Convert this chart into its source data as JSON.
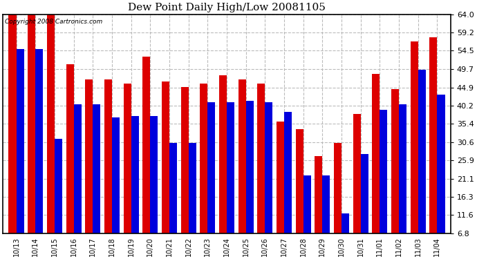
{
  "title": "Dew Point Daily High/Low 20081105",
  "copyright": "Copyright 2008 Cartronics.com",
  "dates": [
    "10/13",
    "10/14",
    "10/15",
    "10/16",
    "10/17",
    "10/18",
    "10/19",
    "10/20",
    "10/21",
    "10/22",
    "10/23",
    "10/24",
    "10/25",
    "10/26",
    "10/27",
    "10/28",
    "10/29",
    "10/30",
    "10/31",
    "11/01",
    "11/02",
    "11/03",
    "11/04"
  ],
  "highs": [
    64.0,
    64.0,
    64.0,
    51.0,
    47.0,
    47.0,
    46.0,
    53.0,
    46.5,
    45.0,
    46.0,
    48.0,
    47.0,
    46.0,
    36.0,
    34.0,
    27.0,
    30.5,
    38.0,
    48.5,
    44.5,
    57.0,
    58.0
  ],
  "lows": [
    55.0,
    55.0,
    31.5,
    40.5,
    40.5,
    37.0,
    37.5,
    37.5,
    30.5,
    30.5,
    41.0,
    41.0,
    41.5,
    41.0,
    38.5,
    22.0,
    22.0,
    12.0,
    27.5,
    39.0,
    40.5,
    49.5,
    43.0
  ],
  "high_color": "#dd0000",
  "low_color": "#0000dd",
  "bg_color": "#ffffff",
  "plot_bg_color": "#ffffff",
  "grid_color": "#bbbbbb",
  "yticks": [
    6.8,
    11.6,
    16.3,
    21.1,
    25.9,
    30.6,
    35.4,
    40.2,
    44.9,
    49.7,
    54.5,
    59.2,
    64.0
  ],
  "ylim_min": 6.8,
  "ylim_max": 64.0,
  "bar_width": 0.4
}
